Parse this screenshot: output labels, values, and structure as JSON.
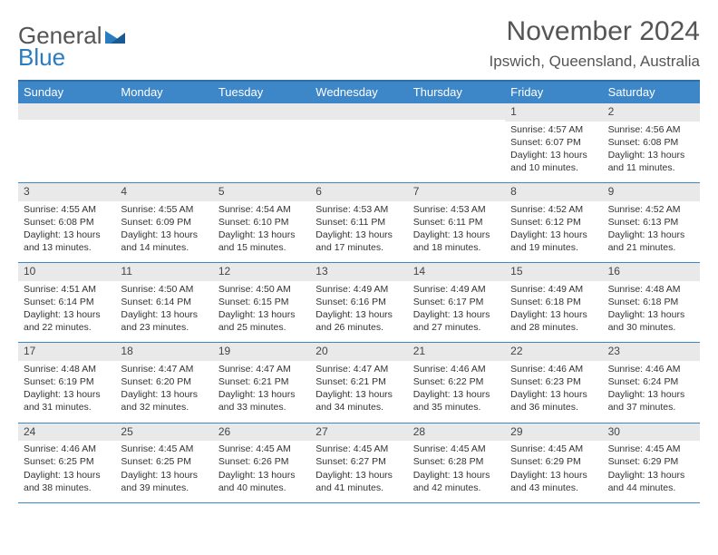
{
  "brand": {
    "part1": "General",
    "part2": "Blue"
  },
  "title": "November 2024",
  "location": "Ipswich, Queensland, Australia",
  "colors": {
    "header_bg": "#3d87c9",
    "header_border": "#2f6fa8",
    "daynum_bg": "#e9e9e9",
    "text": "#333333",
    "title_text": "#555555"
  },
  "day_headers": [
    "Sunday",
    "Monday",
    "Tuesday",
    "Wednesday",
    "Thursday",
    "Friday",
    "Saturday"
  ],
  "weeks": [
    [
      {
        "n": "",
        "sr": "",
        "ss": "",
        "d1": "",
        "d2": ""
      },
      {
        "n": "",
        "sr": "",
        "ss": "",
        "d1": "",
        "d2": ""
      },
      {
        "n": "",
        "sr": "",
        "ss": "",
        "d1": "",
        "d2": ""
      },
      {
        "n": "",
        "sr": "",
        "ss": "",
        "d1": "",
        "d2": ""
      },
      {
        "n": "",
        "sr": "",
        "ss": "",
        "d1": "",
        "d2": ""
      },
      {
        "n": "1",
        "sr": "Sunrise: 4:57 AM",
        "ss": "Sunset: 6:07 PM",
        "d1": "Daylight: 13 hours",
        "d2": "and 10 minutes."
      },
      {
        "n": "2",
        "sr": "Sunrise: 4:56 AM",
        "ss": "Sunset: 6:08 PM",
        "d1": "Daylight: 13 hours",
        "d2": "and 11 minutes."
      }
    ],
    [
      {
        "n": "3",
        "sr": "Sunrise: 4:55 AM",
        "ss": "Sunset: 6:08 PM",
        "d1": "Daylight: 13 hours",
        "d2": "and 13 minutes."
      },
      {
        "n": "4",
        "sr": "Sunrise: 4:55 AM",
        "ss": "Sunset: 6:09 PM",
        "d1": "Daylight: 13 hours",
        "d2": "and 14 minutes."
      },
      {
        "n": "5",
        "sr": "Sunrise: 4:54 AM",
        "ss": "Sunset: 6:10 PM",
        "d1": "Daylight: 13 hours",
        "d2": "and 15 minutes."
      },
      {
        "n": "6",
        "sr": "Sunrise: 4:53 AM",
        "ss": "Sunset: 6:11 PM",
        "d1": "Daylight: 13 hours",
        "d2": "and 17 minutes."
      },
      {
        "n": "7",
        "sr": "Sunrise: 4:53 AM",
        "ss": "Sunset: 6:11 PM",
        "d1": "Daylight: 13 hours",
        "d2": "and 18 minutes."
      },
      {
        "n": "8",
        "sr": "Sunrise: 4:52 AM",
        "ss": "Sunset: 6:12 PM",
        "d1": "Daylight: 13 hours",
        "d2": "and 19 minutes."
      },
      {
        "n": "9",
        "sr": "Sunrise: 4:52 AM",
        "ss": "Sunset: 6:13 PM",
        "d1": "Daylight: 13 hours",
        "d2": "and 21 minutes."
      }
    ],
    [
      {
        "n": "10",
        "sr": "Sunrise: 4:51 AM",
        "ss": "Sunset: 6:14 PM",
        "d1": "Daylight: 13 hours",
        "d2": "and 22 minutes."
      },
      {
        "n": "11",
        "sr": "Sunrise: 4:50 AM",
        "ss": "Sunset: 6:14 PM",
        "d1": "Daylight: 13 hours",
        "d2": "and 23 minutes."
      },
      {
        "n": "12",
        "sr": "Sunrise: 4:50 AM",
        "ss": "Sunset: 6:15 PM",
        "d1": "Daylight: 13 hours",
        "d2": "and 25 minutes."
      },
      {
        "n": "13",
        "sr": "Sunrise: 4:49 AM",
        "ss": "Sunset: 6:16 PM",
        "d1": "Daylight: 13 hours",
        "d2": "and 26 minutes."
      },
      {
        "n": "14",
        "sr": "Sunrise: 4:49 AM",
        "ss": "Sunset: 6:17 PM",
        "d1": "Daylight: 13 hours",
        "d2": "and 27 minutes."
      },
      {
        "n": "15",
        "sr": "Sunrise: 4:49 AM",
        "ss": "Sunset: 6:18 PM",
        "d1": "Daylight: 13 hours",
        "d2": "and 28 minutes."
      },
      {
        "n": "16",
        "sr": "Sunrise: 4:48 AM",
        "ss": "Sunset: 6:18 PM",
        "d1": "Daylight: 13 hours",
        "d2": "and 30 minutes."
      }
    ],
    [
      {
        "n": "17",
        "sr": "Sunrise: 4:48 AM",
        "ss": "Sunset: 6:19 PM",
        "d1": "Daylight: 13 hours",
        "d2": "and 31 minutes."
      },
      {
        "n": "18",
        "sr": "Sunrise: 4:47 AM",
        "ss": "Sunset: 6:20 PM",
        "d1": "Daylight: 13 hours",
        "d2": "and 32 minutes."
      },
      {
        "n": "19",
        "sr": "Sunrise: 4:47 AM",
        "ss": "Sunset: 6:21 PM",
        "d1": "Daylight: 13 hours",
        "d2": "and 33 minutes."
      },
      {
        "n": "20",
        "sr": "Sunrise: 4:47 AM",
        "ss": "Sunset: 6:21 PM",
        "d1": "Daylight: 13 hours",
        "d2": "and 34 minutes."
      },
      {
        "n": "21",
        "sr": "Sunrise: 4:46 AM",
        "ss": "Sunset: 6:22 PM",
        "d1": "Daylight: 13 hours",
        "d2": "and 35 minutes."
      },
      {
        "n": "22",
        "sr": "Sunrise: 4:46 AM",
        "ss": "Sunset: 6:23 PM",
        "d1": "Daylight: 13 hours",
        "d2": "and 36 minutes."
      },
      {
        "n": "23",
        "sr": "Sunrise: 4:46 AM",
        "ss": "Sunset: 6:24 PM",
        "d1": "Daylight: 13 hours",
        "d2": "and 37 minutes."
      }
    ],
    [
      {
        "n": "24",
        "sr": "Sunrise: 4:46 AM",
        "ss": "Sunset: 6:25 PM",
        "d1": "Daylight: 13 hours",
        "d2": "and 38 minutes."
      },
      {
        "n": "25",
        "sr": "Sunrise: 4:45 AM",
        "ss": "Sunset: 6:25 PM",
        "d1": "Daylight: 13 hours",
        "d2": "and 39 minutes."
      },
      {
        "n": "26",
        "sr": "Sunrise: 4:45 AM",
        "ss": "Sunset: 6:26 PM",
        "d1": "Daylight: 13 hours",
        "d2": "and 40 minutes."
      },
      {
        "n": "27",
        "sr": "Sunrise: 4:45 AM",
        "ss": "Sunset: 6:27 PM",
        "d1": "Daylight: 13 hours",
        "d2": "and 41 minutes."
      },
      {
        "n": "28",
        "sr": "Sunrise: 4:45 AM",
        "ss": "Sunset: 6:28 PM",
        "d1": "Daylight: 13 hours",
        "d2": "and 42 minutes."
      },
      {
        "n": "29",
        "sr": "Sunrise: 4:45 AM",
        "ss": "Sunset: 6:29 PM",
        "d1": "Daylight: 13 hours",
        "d2": "and 43 minutes."
      },
      {
        "n": "30",
        "sr": "Sunrise: 4:45 AM",
        "ss": "Sunset: 6:29 PM",
        "d1": "Daylight: 13 hours",
        "d2": "and 44 minutes."
      }
    ]
  ]
}
